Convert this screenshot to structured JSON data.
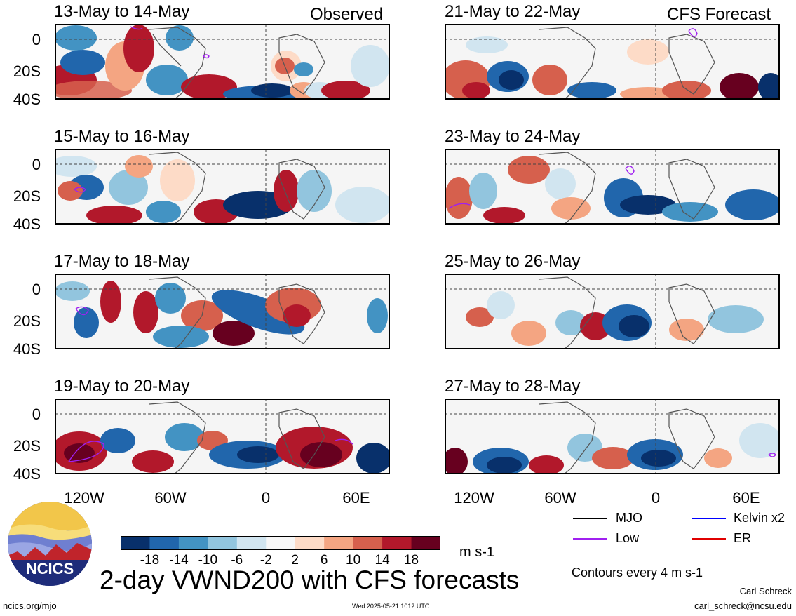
{
  "title": "2-day VWND200 with CFS forecasts",
  "footer": {
    "left": "ncics.org/mjo",
    "center": "Wed 2025-05-21 1012 UTC",
    "author": "Carl Schreck",
    "email": "carl_schreck@ncsu.edu"
  },
  "logo": {
    "text": "NCICS"
  },
  "columns": {
    "left_label": "Observed",
    "right_label": "CFS Forecast"
  },
  "panels_left": [
    {
      "date": "13-May to 14-May"
    },
    {
      "date": "15-May to 16-May"
    },
    {
      "date": "17-May to 18-May"
    },
    {
      "date": "19-May to 20-May"
    }
  ],
  "panels_right": [
    {
      "date": "21-May to 22-May"
    },
    {
      "date": "23-May to 24-May"
    },
    {
      "date": "25-May to 26-May"
    },
    {
      "date": "27-May to 28-May"
    }
  ],
  "axes": {
    "y_ticks": [
      "0",
      "20S",
      "40S"
    ],
    "x_ticks": [
      "120W",
      "60W",
      "0",
      "60E"
    ]
  },
  "colorbar": {
    "labels": [
      "-18",
      "-14",
      "-10",
      "-6",
      "-2",
      "2",
      "6",
      "10",
      "14",
      "18"
    ],
    "colors": [
      "#08306b",
      "#2166ac",
      "#4393c3",
      "#92c5de",
      "#d1e5f0",
      "#f7f7f7",
      "#fddbc7",
      "#f4a582",
      "#d6604d",
      "#b2182b",
      "#67001f"
    ],
    "unit": "m s-1"
  },
  "legend": {
    "items": [
      {
        "label": "MJO",
        "color": "#000000"
      },
      {
        "label": "Kelvin x2",
        "color": "#0000ff"
      },
      {
        "label": "Low",
        "color": "#a020f0"
      },
      {
        "label": "ER",
        "color": "#e00000"
      }
    ],
    "note": "Contours every 4 m s-1"
  }
}
